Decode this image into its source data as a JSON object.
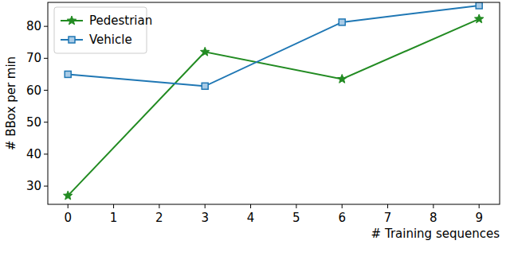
{
  "chart_data": {
    "type": "line",
    "x_label": "# Training sequences",
    "y_label": "# BBox per min",
    "x": [
      0,
      3,
      6,
      9
    ],
    "series": [
      {
        "name": "Pedestrian",
        "color": "#228b22",
        "marker": "star",
        "values": [
          27,
          72,
          63.5,
          82.3
        ]
      },
      {
        "name": "Vehicle",
        "color": "#1f77b4",
        "marker": "square",
        "values": [
          65,
          61.3,
          81.3,
          86.5
        ]
      }
    ],
    "xlim": [
      -0.44,
      9.45
    ],
    "ylim": [
      24.3,
      87.5
    ],
    "xticks": [
      0,
      1,
      2,
      3,
      4,
      5,
      6,
      7,
      8,
      9
    ],
    "yticks": [
      30,
      40,
      50,
      60,
      70,
      80
    ],
    "grid": false,
    "legend": "upper left"
  }
}
